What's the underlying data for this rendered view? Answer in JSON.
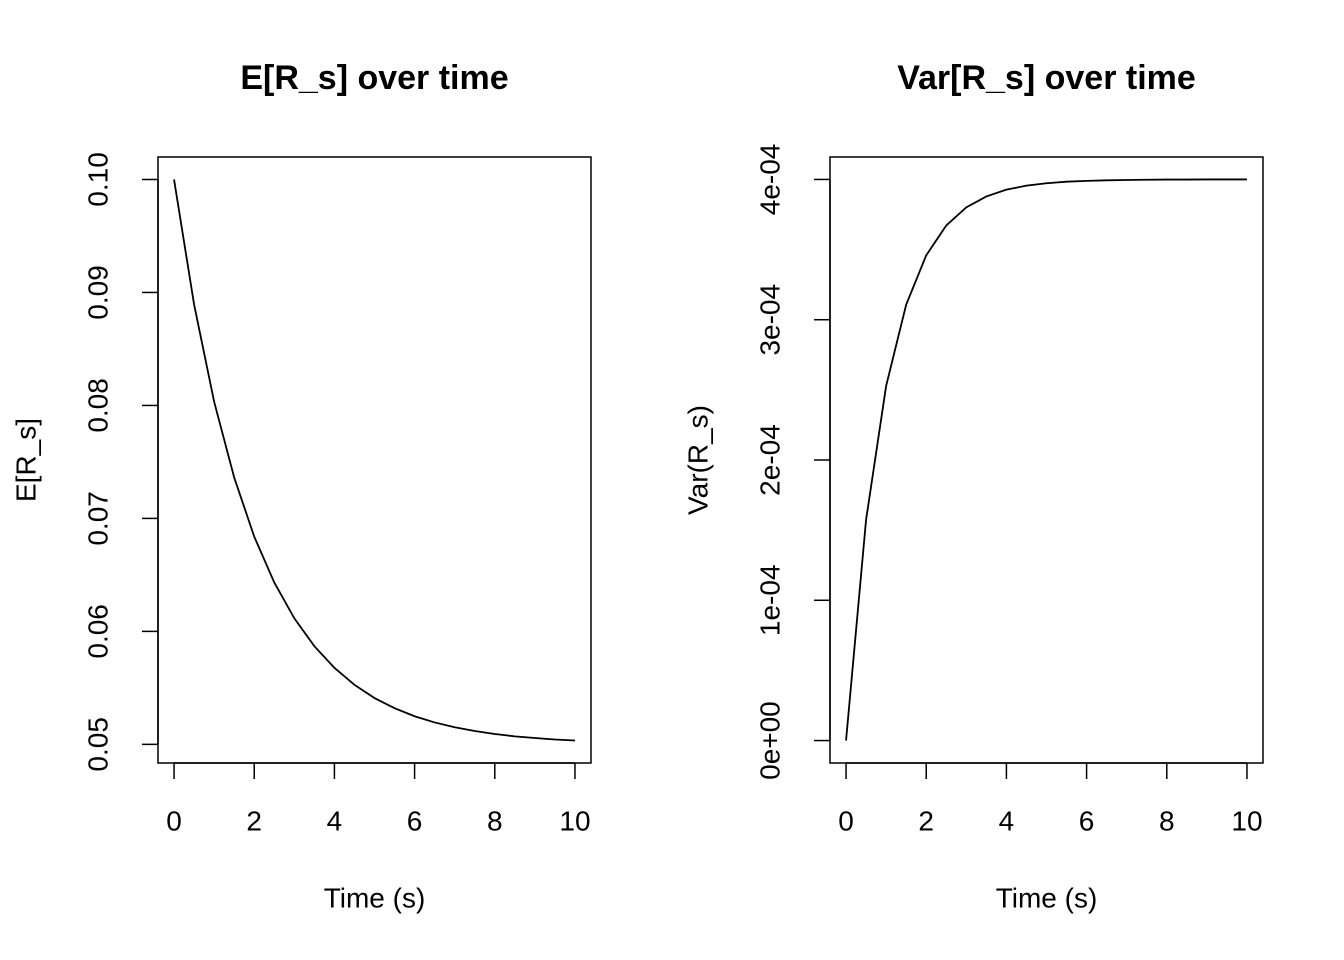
{
  "chart_data": [
    {
      "type": "line",
      "title": "E[R_s] over time",
      "xlabel": "Time (s)",
      "ylabel": "E[R_s]",
      "x": [
        0,
        0.5,
        1,
        1.5,
        2,
        2.5,
        3,
        3.5,
        4,
        4.5,
        5,
        5.5,
        6,
        6.5,
        7,
        7.5,
        8,
        8.5,
        9,
        9.5,
        10
      ],
      "series": [
        {
          "color": "#000000",
          "values": [
            0.1,
            0.08894,
            0.08033,
            0.07362,
            0.06839,
            0.06433,
            0.06116,
            0.05869,
            0.05677,
            0.05527,
            0.0541,
            0.0532,
            0.05249,
            0.05194,
            0.05151,
            0.05118,
            0.05092,
            0.05071,
            0.05056,
            0.05043,
            0.05034
          ]
        }
      ],
      "xlim": [
        -0.4,
        10.4
      ],
      "xticks": [
        0,
        2,
        4,
        6,
        8,
        10
      ],
      "ylim": [
        0.04835,
        0.10199
      ],
      "yticks": [
        {
          "value": 0.05,
          "label": "0.05"
        },
        {
          "value": 0.06,
          "label": "0.06"
        },
        {
          "value": 0.07,
          "label": "0.07"
        },
        {
          "value": 0.08,
          "label": "0.08"
        },
        {
          "value": 0.09,
          "label": "0.09"
        },
        {
          "value": 0.1,
          "label": "0.10"
        }
      ]
    },
    {
      "type": "line",
      "title": "Var[R_s] over time",
      "xlabel": "Time (s)",
      "ylabel": "Var(R_s)",
      "x": [
        0,
        0.5,
        1,
        1.5,
        2,
        2.5,
        3,
        3.5,
        4,
        4.5,
        5,
        5.5,
        6,
        6.5,
        7,
        7.5,
        8,
        8.5,
        9,
        9.5,
        10
      ],
      "series": [
        {
          "color": "#000000",
          "values": [
            0,
            0.0001574,
            0.0002528,
            0.0003107,
            0.0003459,
            0.0003672,
            0.0003801,
            0.0003879,
            0.0003927,
            0.0003956,
            0.0003973,
            0.0003984,
            0.000399,
            0.0003994,
            0.0003996,
            0.0003998,
            0.0003999,
            0.0003999,
            0.0004,
            0.0004,
            0.0004
          ]
        }
      ],
      "xlim": [
        -0.4,
        10.4
      ],
      "xticks": [
        0,
        2,
        4,
        6,
        8,
        10
      ],
      "ylim": [
        -1.6e-05,
        0.000416
      ],
      "yticks": [
        {
          "value": 0,
          "label": "0e+00"
        },
        {
          "value": 0.0001,
          "label": "1e-04"
        },
        {
          "value": 0.0002,
          "label": "2e-04"
        },
        {
          "value": 0.0003,
          "label": "3e-04"
        },
        {
          "value": 0.0004,
          "label": "4e-04"
        }
      ]
    }
  ]
}
